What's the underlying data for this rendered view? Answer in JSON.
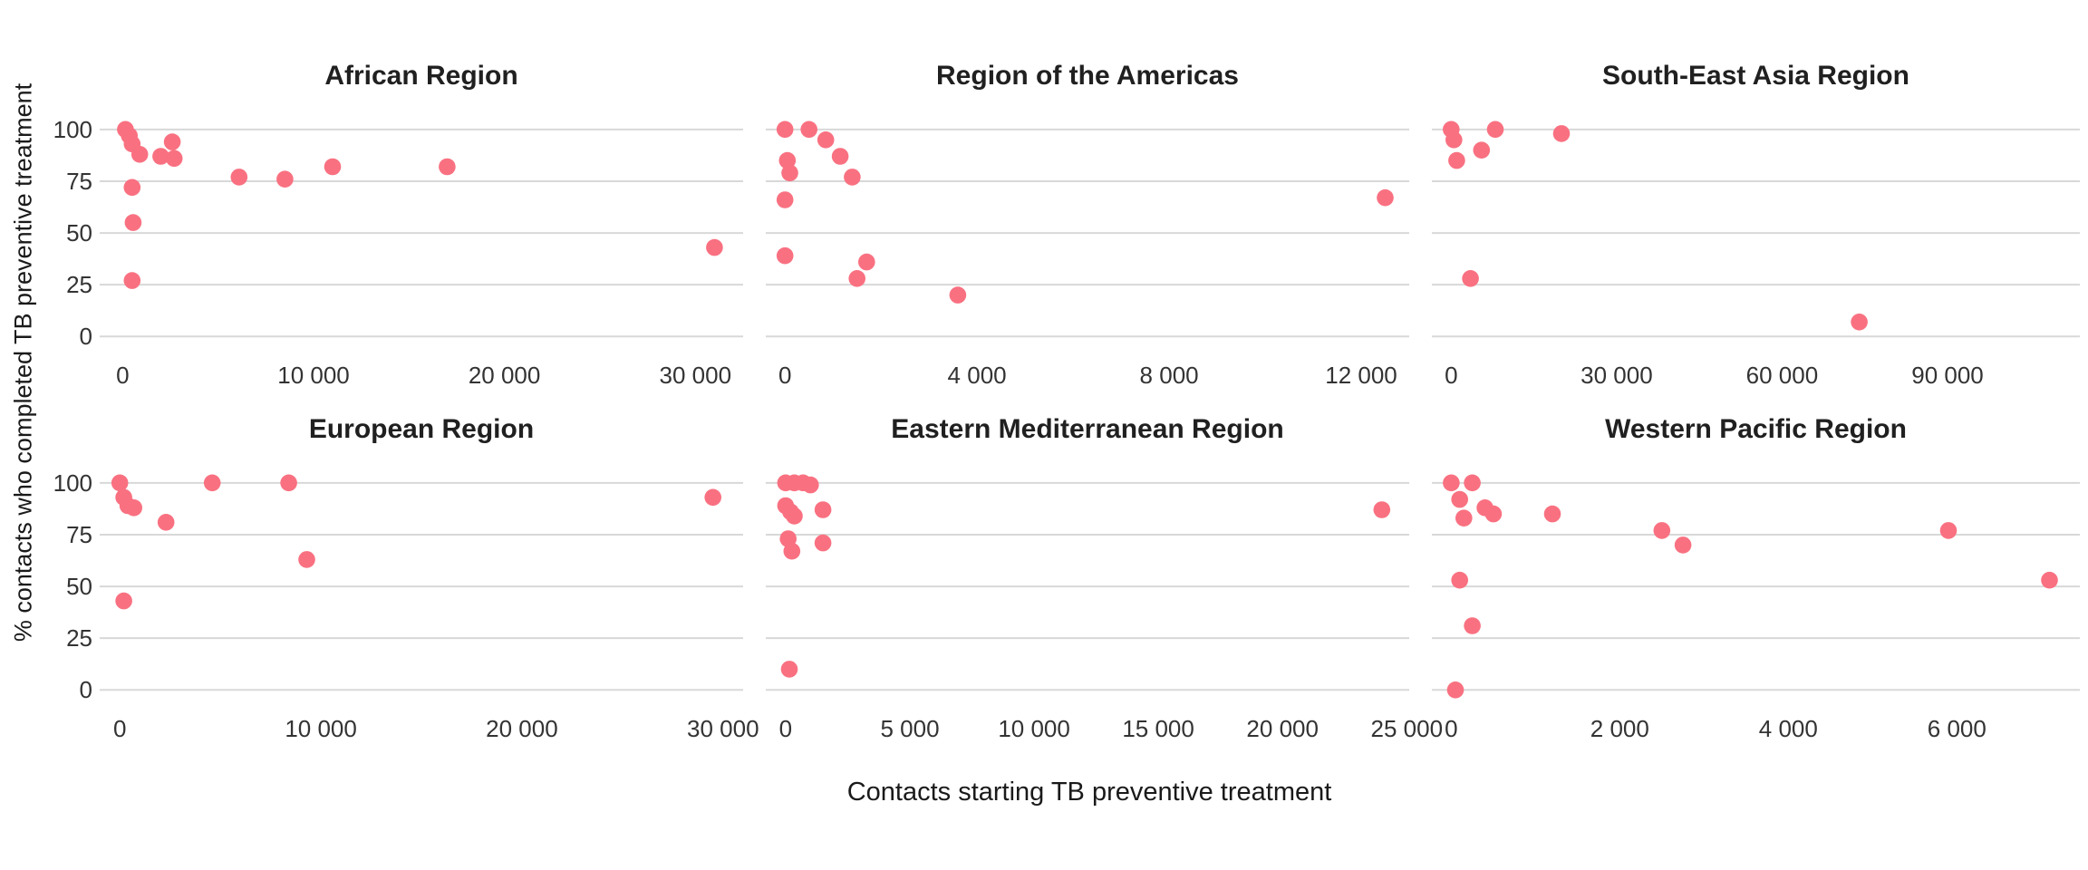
{
  "figure": {
    "x_axis_title": "Contacts starting TB preventive treatment",
    "y_axis_title": "% contacts who completed TB preventive treatment"
  },
  "style": {
    "point_color": "#f97181",
    "gridline_color": "#d8d8d8",
    "tick_label_color": "#333333",
    "title_color": "#202020",
    "background": "#ffffff"
  },
  "chart_data": {
    "type": "scatter",
    "grid": "horizontal-only",
    "legend": "none",
    "y_axis": {
      "label": "% contacts who completed TB preventive treatment",
      "ticks": [
        100,
        75,
        50,
        25,
        0
      ],
      "domain": [
        -6,
        110
      ]
    },
    "x_axis": {
      "label": "Contacts starting TB preventive treatment",
      "scales": "free-x"
    },
    "facets": [
      {
        "title": "African Region",
        "x_domain": [
          -1200,
          32500
        ],
        "x_ticks": [
          {
            "v": 0,
            "label": "0"
          },
          {
            "v": 10000,
            "label": "10 000"
          },
          {
            "v": 20000,
            "label": "20 000"
          },
          {
            "v": 30000,
            "label": "30 000"
          }
        ],
        "points": [
          [
            150,
            100
          ],
          [
            350,
            97
          ],
          [
            500,
            93
          ],
          [
            900,
            88
          ],
          [
            2000,
            87
          ],
          [
            2600,
            94
          ],
          [
            2700,
            86
          ],
          [
            500,
            72
          ],
          [
            550,
            55
          ],
          [
            500,
            27
          ],
          [
            6100,
            77
          ],
          [
            8500,
            76
          ],
          [
            11000,
            82
          ],
          [
            17000,
            82
          ],
          [
            31000,
            43
          ]
        ]
      },
      {
        "title": "Region of the Americas",
        "x_domain": [
          -400,
          13000
        ],
        "x_ticks": [
          {
            "v": 0,
            "label": "0"
          },
          {
            "v": 4000,
            "label": "4 000"
          },
          {
            "v": 8000,
            "label": "8 000"
          },
          {
            "v": 12000,
            "label": "12 000"
          }
        ],
        "points": [
          [
            0,
            100
          ],
          [
            500,
            100
          ],
          [
            850,
            95
          ],
          [
            1150,
            87
          ],
          [
            1400,
            77
          ],
          [
            50,
            85
          ],
          [
            100,
            79
          ],
          [
            0,
            66
          ],
          [
            0,
            39
          ],
          [
            1700,
            36
          ],
          [
            1500,
            28
          ],
          [
            3600,
            20
          ],
          [
            12500,
            67
          ]
        ]
      },
      {
        "title": "South-East Asia Region",
        "x_domain": [
          -3500,
          114000
        ],
        "x_ticks": [
          {
            "v": 0,
            "label": "0"
          },
          {
            "v": 30000,
            "label": "30 000"
          },
          {
            "v": 60000,
            "label": "60 000"
          },
          {
            "v": 90000,
            "label": "90 000"
          }
        ],
        "points": [
          [
            0,
            100
          ],
          [
            500,
            95
          ],
          [
            1000,
            85
          ],
          [
            5500,
            90
          ],
          [
            8000,
            100
          ],
          [
            20000,
            98
          ],
          [
            3500,
            28
          ],
          [
            74000,
            7
          ]
        ]
      },
      {
        "title": "European Region",
        "x_domain": [
          -1000,
          31000
        ],
        "x_ticks": [
          {
            "v": 0,
            "label": "0"
          },
          {
            "v": 10000,
            "label": "10 000"
          },
          {
            "v": 20000,
            "label": "20 000"
          },
          {
            "v": 30000,
            "label": "30 000"
          }
        ],
        "points": [
          [
            0,
            100
          ],
          [
            200,
            93
          ],
          [
            400,
            89
          ],
          [
            700,
            88
          ],
          [
            2300,
            81
          ],
          [
            4600,
            100
          ],
          [
            8400,
            100
          ],
          [
            9300,
            63
          ],
          [
            200,
            43
          ],
          [
            29500,
            93
          ]
        ]
      },
      {
        "title": "Eastern Mediterranean Region",
        "x_domain": [
          -800,
          25100
        ],
        "x_ticks": [
          {
            "v": 0,
            "label": "0"
          },
          {
            "v": 5000,
            "label": "5 000"
          },
          {
            "v": 10000,
            "label": "10 000"
          },
          {
            "v": 15000,
            "label": "15 000"
          },
          {
            "v": 20000,
            "label": "20 000"
          },
          {
            "v": 25000,
            "label": "25 000"
          }
        ],
        "points": [
          [
            0,
            100
          ],
          [
            350,
            100
          ],
          [
            700,
            100
          ],
          [
            1000,
            99
          ],
          [
            0,
            89
          ],
          [
            200,
            86
          ],
          [
            350,
            84
          ],
          [
            1500,
            87
          ],
          [
            100,
            73
          ],
          [
            250,
            67
          ],
          [
            1500,
            71
          ],
          [
            150,
            10
          ],
          [
            24000,
            87
          ]
        ]
      },
      {
        "title": "Western Pacific Region",
        "x_domain": [
          -230,
          7460
        ],
        "x_ticks": [
          {
            "v": 0,
            "label": "0"
          },
          {
            "v": 2000,
            "label": "2 000"
          },
          {
            "v": 4000,
            "label": "4 000"
          },
          {
            "v": 6000,
            "label": "6 000"
          }
        ],
        "points": [
          [
            0,
            100
          ],
          [
            250,
            100
          ],
          [
            100,
            92
          ],
          [
            150,
            83
          ],
          [
            400,
            88
          ],
          [
            500,
            85
          ],
          [
            1200,
            85
          ],
          [
            2500,
            77
          ],
          [
            2750,
            70
          ],
          [
            100,
            53
          ],
          [
            250,
            31
          ],
          [
            50,
            0
          ],
          [
            5900,
            77
          ],
          [
            7100,
            53
          ]
        ]
      }
    ]
  }
}
